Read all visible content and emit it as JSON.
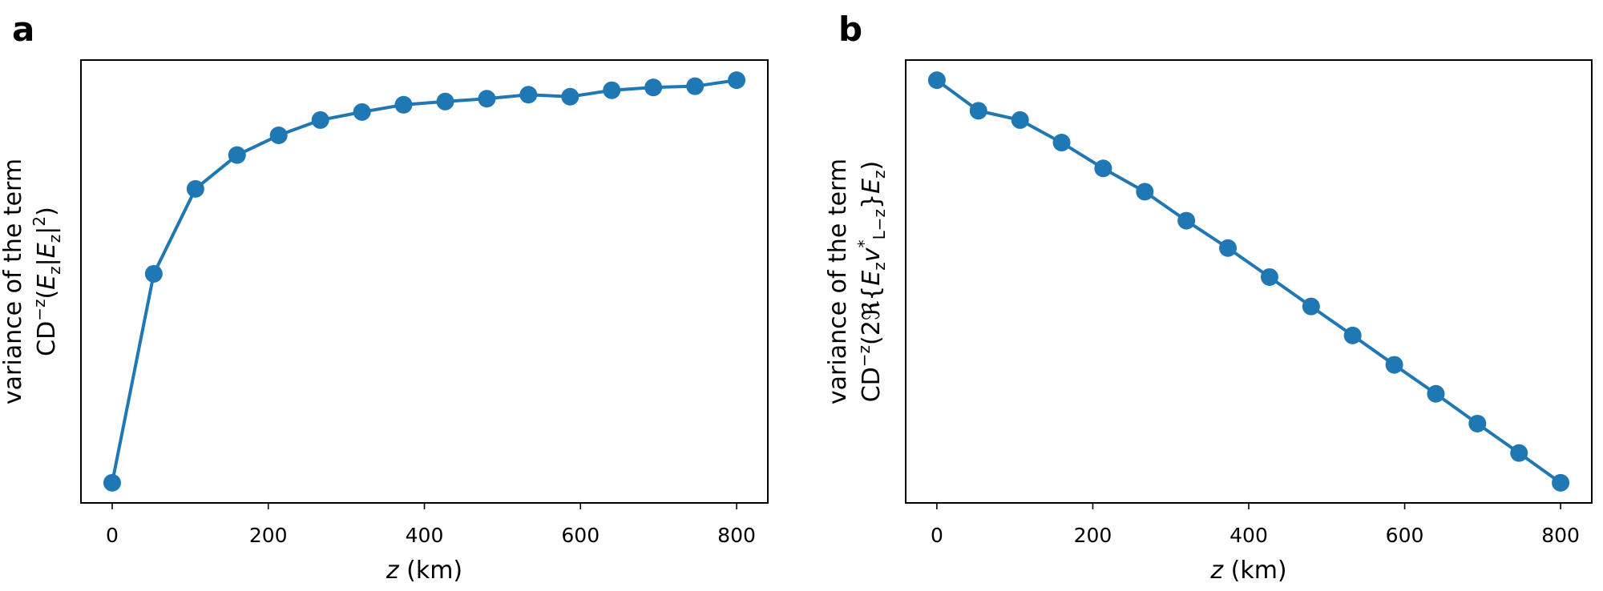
{
  "chart_data": [
    {
      "type": "line",
      "panel": "a",
      "xlabel": [
        {
          "text": "z",
          "style": "it"
        },
        {
          "text": " (km)"
        }
      ],
      "ylabel": [
        [
          {
            "text": "variance of the term"
          }
        ],
        [
          {
            "text": "CD"
          },
          {
            "text": "−z",
            "style": "sup"
          },
          {
            "text": "("
          },
          {
            "text": "E",
            "style": "it"
          },
          {
            "text": "z",
            "style": "sub"
          },
          {
            "text": "|"
          },
          {
            "text": "E",
            "style": "it"
          },
          {
            "text": "z",
            "style": "sub"
          },
          {
            "text": "|"
          },
          {
            "text": "2",
            "style": "sup"
          },
          {
            "text": ")"
          }
        ]
      ],
      "x": [
        0,
        53.3,
        106.7,
        160,
        213.3,
        266.7,
        320,
        373.3,
        426.7,
        480,
        533.3,
        586.7,
        640,
        693.3,
        746.7,
        800
      ],
      "values": [
        0,
        0.519,
        0.73,
        0.814,
        0.863,
        0.901,
        0.921,
        0.939,
        0.947,
        0.954,
        0.964,
        0.959,
        0.975,
        0.982,
        0.985,
        1.0
      ],
      "color": "#1f77b4",
      "xlim": [
        -40,
        840
      ],
      "xticks": [
        0,
        200,
        400,
        600,
        800
      ],
      "ylim": [
        -0.05,
        1.05
      ]
    },
    {
      "type": "line",
      "panel": "b",
      "xlabel": [
        {
          "text": "z",
          "style": "it"
        },
        {
          "text": " (km)"
        }
      ],
      "ylabel": [
        [
          {
            "text": "variance of the term"
          }
        ],
        [
          {
            "text": "CD"
          },
          {
            "text": "−z",
            "style": "sup"
          },
          {
            "text": "(2ℜ{"
          },
          {
            "text": "E",
            "style": "it"
          },
          {
            "text": "z",
            "style": "sub"
          },
          {
            "text": "v",
            "style": "it"
          },
          {
            "text": "*",
            "style": "sup"
          },
          {
            "text": "L−z",
            "style": "sub"
          },
          {
            "text": "}"
          },
          {
            "text": "E",
            "style": "it"
          },
          {
            "text": "z",
            "style": "sub"
          },
          {
            "text": ")"
          }
        ]
      ],
      "x": [
        0,
        53.3,
        106.7,
        160,
        213.3,
        266.7,
        320,
        373.3,
        426.7,
        480,
        533.3,
        586.7,
        640,
        693.3,
        746.7,
        800
      ],
      "values": [
        1.0,
        0.924,
        0.901,
        0.845,
        0.781,
        0.723,
        0.651,
        0.583,
        0.511,
        0.438,
        0.366,
        0.293,
        0.221,
        0.147,
        0.074,
        0
      ],
      "color": "#1f77b4",
      "xlim": [
        -40,
        840
      ],
      "xticks": [
        0,
        200,
        400,
        600,
        800
      ],
      "ylim": [
        -0.05,
        1.05
      ]
    }
  ]
}
